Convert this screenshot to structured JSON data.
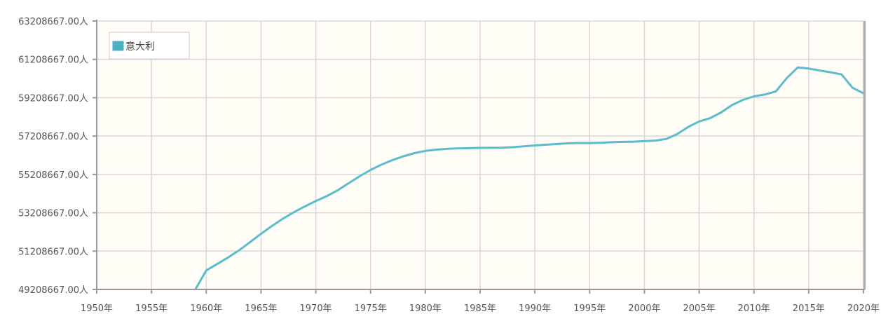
{
  "chart_data": {
    "type": "line",
    "title": "",
    "xlabel": "",
    "ylabel": "",
    "xlim": [
      1950,
      2020
    ],
    "ylim": [
      49208667,
      63208667
    ],
    "grid": true,
    "legend_placement": "top-left",
    "x_ticks": [
      "1950年",
      "1955年",
      "1960年",
      "1965年",
      "1970年",
      "1975年",
      "1980年",
      "1985年",
      "1990年",
      "1995年",
      "2000年",
      "2005年",
      "2010年",
      "2015年",
      "2020年"
    ],
    "y_ticks": [
      "49208667.00人",
      "51208667.00人",
      "53208667.00人",
      "55208667.00人",
      "57208667.00人",
      "59208667.00人",
      "61208667.00人",
      "63208667.00人"
    ],
    "series": [
      {
        "name": "意大利",
        "color": "#5bbccc",
        "x": [
          1959,
          1960,
          1961,
          1962,
          1963,
          1964,
          1965,
          1966,
          1967,
          1968,
          1969,
          1970,
          1971,
          1972,
          1973,
          1974,
          1975,
          1976,
          1977,
          1978,
          1979,
          1980,
          1981,
          1982,
          1983,
          1984,
          1985,
          1986,
          1987,
          1988,
          1989,
          1990,
          1991,
          1992,
          1993,
          1994,
          1995,
          1996,
          1997,
          1998,
          1999,
          2000,
          2001,
          2002,
          2003,
          2004,
          2005,
          2006,
          2007,
          2008,
          2009,
          2010,
          2011,
          2012,
          2013,
          2014,
          2015,
          2016,
          2017,
          2018,
          2019,
          2020
        ],
        "values": [
          49208667,
          50199700,
          50536350,
          50879450,
          51252000,
          51675350,
          52112350,
          52519000,
          52900500,
          53235750,
          53537950,
          53821850,
          54073490,
          54381345,
          54751406,
          55111315,
          55441001,
          55718260,
          55955411,
          56155143,
          56317749,
          56433883,
          56501675,
          56543548,
          56564074,
          56576718,
          56593071,
          56596155,
          56601931,
          56629288,
          56671781,
          56719240,
          56758521,
          56797087,
          56831821,
          56843400,
          56844303,
          56860281,
          56890372,
          56906744,
          56916317,
          56942108,
          56974100,
          57059007,
          57313203,
          57685327,
          57969484,
          58143979,
          58438310,
          58826731,
          59095365,
          59277417,
          59379449,
          59539717,
          60233948,
          60789140,
          60730582,
          60627498,
          60536709,
          60421760,
          59729081,
          59438851
        ]
      }
    ]
  },
  "colors": {
    "plot_background": "#fffdf6",
    "grid": "#d8d8d8",
    "axis": "#999999"
  }
}
